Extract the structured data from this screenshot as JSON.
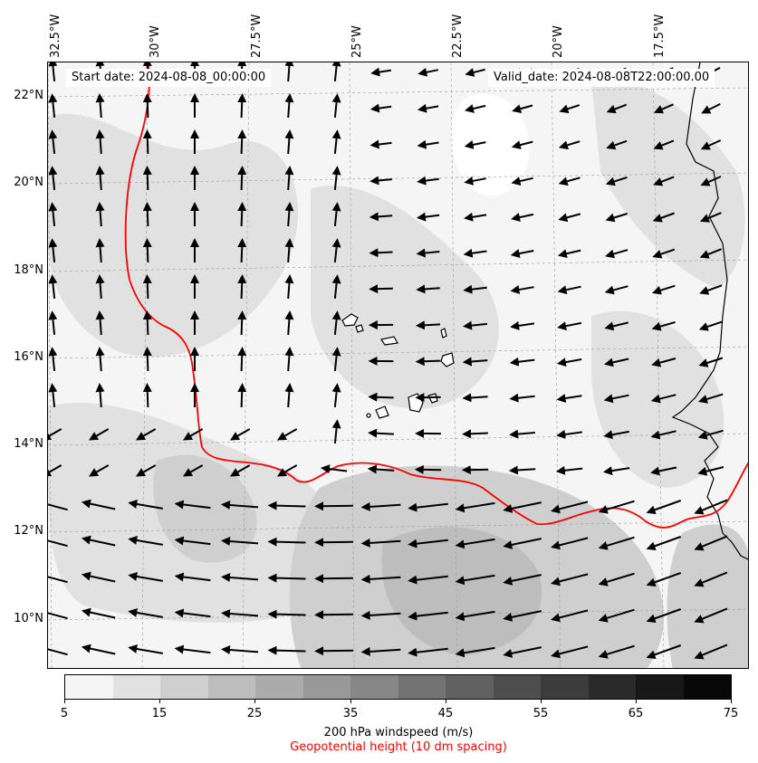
{
  "map": {
    "start_label": "Start date: 2024-08-08_00:00:00",
    "valid_label": "Valid_date: 2024-08-08T22:00:00.00",
    "lon_labels": [
      "32.5°W",
      "30°W",
      "27.5°W",
      "25°W",
      "22.5°W",
      "20°W",
      "17.5°W"
    ],
    "lat_labels": [
      "22°N",
      "20°N",
      "18°N",
      "16°N",
      "14°N",
      "12°N",
      "10°N"
    ],
    "contour_color": "#ff0000",
    "coastline_color": "#000000",
    "arrow_color": "#000000",
    "features": [
      "Cape Verde islands",
      "West African coastline",
      "geopotential height contour",
      "wind vectors"
    ]
  },
  "colorbar": {
    "tick_labels": [
      "5",
      "15",
      "25",
      "35",
      "45",
      "55",
      "65",
      "75"
    ],
    "colors": [
      "#f5f5f5",
      "#e1e1e1",
      "#cfcfcf",
      "#bdbdbd",
      "#ababab",
      "#999999",
      "#878787",
      "#737373",
      "#616161",
      "#4e4e4e",
      "#3c3c3c",
      "#2a2a2a",
      "#181818",
      "#080808"
    ],
    "label": "200 hPa windspeed (m/s)",
    "sublabel": "Geopotential height (10 dm spacing)",
    "sublabel_color": "#ff0000"
  }
}
